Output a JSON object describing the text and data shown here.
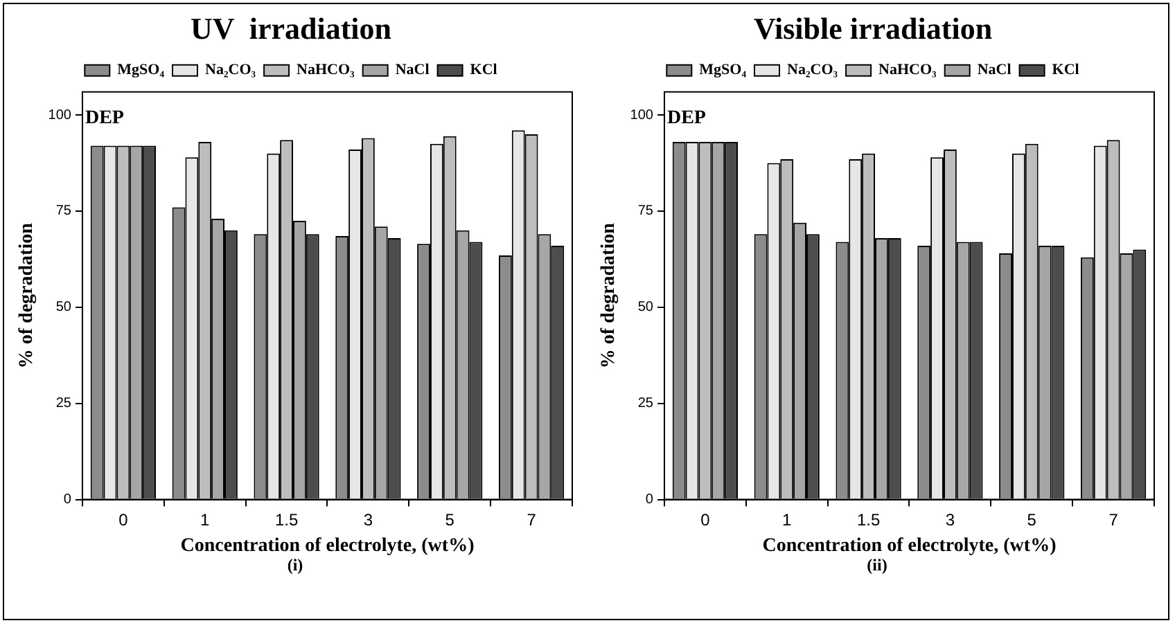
{
  "chart_data": [
    {
      "type": "bar",
      "title": "UV  irradiation",
      "xlabel": "Concentration of electrolyte, (wt%)",
      "ylabel": "% of degradation",
      "categories": [
        "0",
        "1",
        "1.5",
        "3",
        "5",
        "7"
      ],
      "series": [
        {
          "name": "MgSO₄",
          "color": "#8c8c8c",
          "values": [
            92,
            76,
            69,
            68.5,
            66.5,
            63.5
          ]
        },
        {
          "name": "Na₂CO₃",
          "color": "#e6e6e6",
          "values": [
            92,
            89,
            90,
            91,
            92.5,
            96
          ]
        },
        {
          "name": "NaHCO₃",
          "color": "#bdbdbd",
          "values": [
            92,
            93,
            93.5,
            94,
            94.5,
            95
          ]
        },
        {
          "name": "NaCl",
          "color": "#a6a6a6",
          "values": [
            92,
            73,
            72.5,
            71,
            70,
            69
          ]
        },
        {
          "name": "KCl",
          "color": "#4d4d4d",
          "values": [
            92,
            70,
            69,
            68,
            67,
            66
          ]
        }
      ],
      "ylim": [
        0,
        106
      ],
      "yticks": [
        0,
        25,
        50,
        75,
        100
      ],
      "grid": false,
      "legend": "top",
      "annotations": [
        "DEP",
        "(i)"
      ]
    },
    {
      "type": "bar",
      "title": "Visible irradiation",
      "xlabel": "Concentration of electrolyte, (wt%)",
      "ylabel": "% of degradation",
      "categories": [
        "0",
        "1",
        "1.5",
        "3",
        "5",
        "7"
      ],
      "series": [
        {
          "name": "MgSO₄",
          "color": "#8c8c8c",
          "values": [
            93,
            69,
            67,
            66,
            64,
            63
          ]
        },
        {
          "name": "Na₂CO₃",
          "color": "#e6e6e6",
          "values": [
            93,
            87.5,
            88.5,
            89,
            90,
            92
          ]
        },
        {
          "name": "NaHCO₃",
          "color": "#bdbdbd",
          "values": [
            93,
            88.5,
            90,
            91,
            92.5,
            93.5
          ]
        },
        {
          "name": "NaCl",
          "color": "#a6a6a6",
          "values": [
            93,
            72,
            68,
            67,
            66,
            64
          ]
        },
        {
          "name": "KCl",
          "color": "#4d4d4d",
          "values": [
            93,
            69,
            68,
            67,
            66,
            65
          ]
        }
      ],
      "ylim": [
        0,
        106
      ],
      "yticks": [
        0,
        25,
        50,
        75,
        100
      ],
      "grid": false,
      "legend": "top",
      "annotations": [
        "DEP",
        "(ii)"
      ]
    }
  ]
}
